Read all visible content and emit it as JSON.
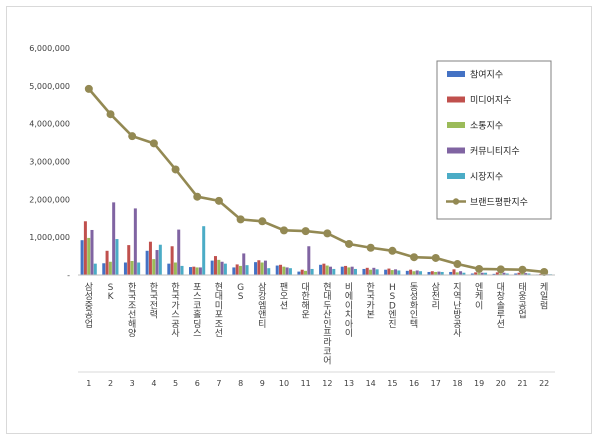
{
  "chart_data": {
    "type": "bar",
    "ylim": [
      0,
      6000000
    ],
    "yticks": [
      "6,000,000",
      "5,000,000",
      "4,000,000",
      "3,000,000",
      "2,000,000",
      "1,000,000",
      "-"
    ],
    "gridlines": false,
    "legend_position": "right",
    "categories": [
      "삼성중공업",
      "SK",
      "한국조선해양",
      "한국전력",
      "한국가스공사",
      "포스코홀딩스",
      "현대미포조선",
      "GS",
      "삼강엠앤티",
      "팬오션",
      "대한해운",
      "현대두산인프라코어",
      "비에이치아이",
      "한국카본",
      "HSD엔진",
      "동성화인텍",
      "삼천리",
      "지역난방공사",
      "엔케이",
      "대창솔루션",
      "태웅공업",
      "케일럼"
    ],
    "index_labels": [
      "1",
      "2",
      "3",
      "4",
      "5",
      "6",
      "7",
      "8",
      "9",
      "10",
      "11",
      "12",
      "13",
      "14",
      "15",
      "16",
      "17",
      "18",
      "19",
      "20",
      "21",
      "22"
    ],
    "series": [
      {
        "name": "참여지수",
        "type": "bar",
        "color": "#4472c4",
        "values": [
          920000,
          310000,
          330000,
          640000,
          300000,
          210000,
          380000,
          200000,
          340000,
          250000,
          90000,
          270000,
          220000,
          160000,
          140000,
          110000,
          80000,
          80000,
          40000,
          30000,
          40000,
          15000
        ]
      },
      {
        "name": "미디어지수",
        "type": "bar",
        "color": "#c0504d",
        "values": [
          1420000,
          640000,
          790000,
          880000,
          760000,
          220000,
          500000,
          280000,
          390000,
          270000,
          140000,
          300000,
          240000,
          190000,
          170000,
          140000,
          100000,
          150000,
          70000,
          70000,
          60000,
          30000
        ]
      },
      {
        "name": "소통지수",
        "type": "bar",
        "color": "#9bbb59",
        "values": [
          980000,
          350000,
          370000,
          420000,
          330000,
          200000,
          400000,
          240000,
          330000,
          220000,
          110000,
          250000,
          200000,
          140000,
          130000,
          100000,
          80000,
          70000,
          50000,
          40000,
          40000,
          20000
        ]
      },
      {
        "name": "커뮤니티지수",
        "type": "bar",
        "color": "#8064a2",
        "values": [
          1190000,
          1920000,
          1760000,
          660000,
          1200000,
          200000,
          350000,
          570000,
          380000,
          200000,
          760000,
          220000,
          220000,
          190000,
          150000,
          120000,
          90000,
          100000,
          60000,
          60000,
          50000,
          20000
        ]
      },
      {
        "name": "시장지수",
        "type": "bar",
        "color": "#4bacc6",
        "values": [
          300000,
          950000,
          330000,
          800000,
          240000,
          1290000,
          300000,
          260000,
          180000,
          180000,
          160000,
          160000,
          160000,
          150000,
          120000,
          100000,
          80000,
          60000,
          60000,
          40000,
          40000,
          20000
        ]
      },
      {
        "name": "브랜드평판지수",
        "type": "line",
        "color": "#938953",
        "values": [
          4920000,
          4250000,
          3670000,
          3480000,
          2790000,
          2070000,
          1960000,
          1470000,
          1420000,
          1180000,
          1160000,
          1100000,
          820000,
          720000,
          640000,
          470000,
          450000,
          290000,
          160000,
          150000,
          140000,
          80000
        ]
      }
    ]
  }
}
